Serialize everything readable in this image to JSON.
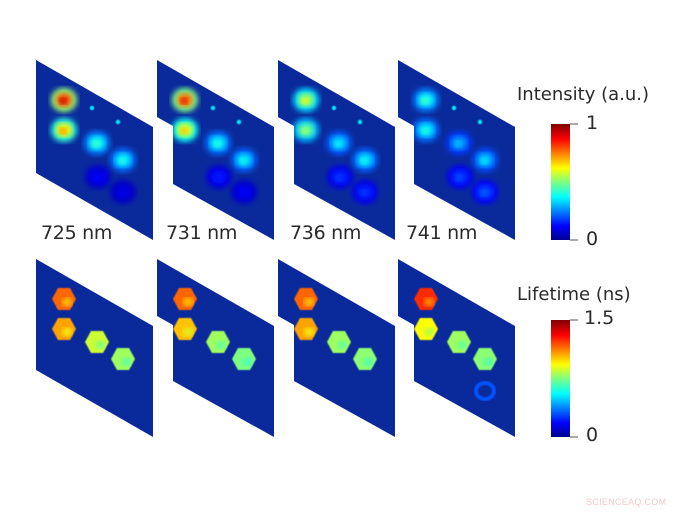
{
  "chart_data": {
    "type": "heatmap",
    "title": "",
    "description": "Hyperspectral fluorescence intensity (top row) and lifetime (bottom row) maps at four emission wavelengths; each map shows a 2x2-ish arrangement of bright spots on a dark-blue background in oblique perspective.",
    "wavelengths": [
      "725 nm",
      "731 nm",
      "736 nm",
      "741 nm"
    ],
    "rows": [
      {
        "name": "intensity",
        "colorbar": {
          "label": "Intensity (a.u.)",
          "min": 0,
          "max": 1,
          "min_label": "0",
          "max_label": "1",
          "colormap": "jet"
        },
        "panels": [
          {
            "wavelength": "725 nm",
            "spots": [
              0.95,
              0.75,
              0.45,
              0.42,
              0.12,
              0.1
            ]
          },
          {
            "wavelength": "731 nm",
            "spots": [
              0.9,
              0.7,
              0.42,
              0.4,
              0.15,
              0.12
            ]
          },
          {
            "wavelength": "736 nm",
            "spots": [
              0.62,
              0.55,
              0.38,
              0.4,
              0.18,
              0.18
            ]
          },
          {
            "wavelength": "741 nm",
            "spots": [
              0.45,
              0.42,
              0.32,
              0.36,
              0.2,
              0.22
            ]
          }
        ]
      },
      {
        "name": "lifetime",
        "colorbar": {
          "label": "Lifetime (ns)",
          "min": 0,
          "max": 1.5,
          "min_label": "0",
          "max_label": "1.5",
          "colormap": "jet"
        },
        "panels": [
          {
            "wavelength": "725 nm",
            "spots": [
              0.95,
              0.85,
              0.62,
              0.55
            ]
          },
          {
            "wavelength": "731 nm",
            "spots": [
              0.95,
              0.8,
              0.55,
              0.5
            ]
          },
          {
            "wavelength": "736 nm",
            "spots": [
              0.95,
              0.85,
              0.55,
              0.52
            ]
          },
          {
            "wavelength": "741 nm",
            "spots": [
              1.05,
              0.7,
              0.55,
              0.52,
              0.4
            ]
          }
        ]
      }
    ],
    "legend_position": "right"
  },
  "labels": {
    "wl_0": "725 nm",
    "wl_1": "731 nm",
    "wl_2": "736 nm",
    "wl_3": "741 nm"
  },
  "colorbars": {
    "intensity": {
      "title": "Intensity (a.u.)",
      "max": "1",
      "min": "0"
    },
    "lifetime": {
      "title": "Lifetime (ns)",
      "max": "1.5",
      "min": "0"
    }
  },
  "watermark": "SCIENCEAQ.COM",
  "colors": {
    "background_panel": "#0a2a9c",
    "text": "#2a2a2a"
  }
}
